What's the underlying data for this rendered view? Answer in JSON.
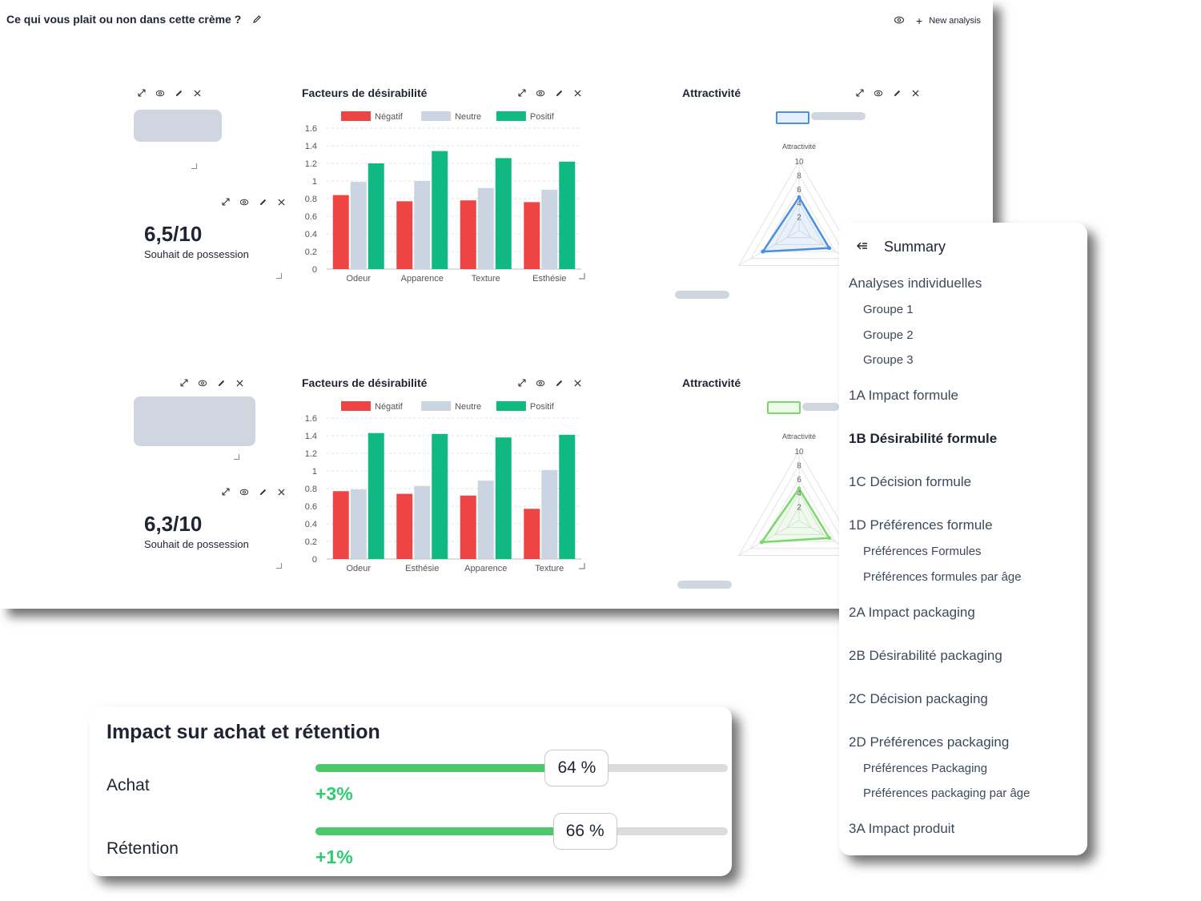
{
  "header": {
    "title": "Ce qui vous plait ou non dans cette crème ?",
    "new_analysis_label": "New analysis"
  },
  "widgets": [
    {
      "score": "6,5/10",
      "score_label": "Souhait de possession",
      "bar_chart_title": "Facteurs de désirabilité",
      "radar_title": "Attractivité",
      "radar_accent": "#4a8fe0"
    },
    {
      "score": "6,3/10",
      "score_label": "Souhait de possession",
      "bar_chart_title": "Facteurs de désirabilité",
      "radar_title": "Attractivité",
      "radar_accent": "#7bd86a"
    }
  ],
  "chart_data": [
    {
      "type": "bar",
      "title": "Facteurs de désirabilité",
      "categories": [
        "Odeur",
        "Apparence",
        "Texture",
        "Esthésie"
      ],
      "series": [
        {
          "name": "Négatif",
          "color": "#ef4444",
          "values": [
            0.84,
            0.77,
            0.78,
            0.76
          ]
        },
        {
          "name": "Neutre",
          "color": "#cbd5e1",
          "values": [
            0.99,
            1.0,
            0.92,
            0.9
          ]
        },
        {
          "name": "Positif",
          "color": "#10b981",
          "values": [
            1.2,
            1.34,
            1.26,
            1.22
          ]
        }
      ],
      "ylim": [
        0,
        1.6
      ],
      "yticks": [
        "0",
        "0.2",
        "0.4",
        "0.6",
        "0.8",
        "1",
        "1.2",
        "1.4",
        "1.6"
      ],
      "legend": "top"
    },
    {
      "type": "bar",
      "title": "Facteurs de désirabilité",
      "categories": [
        "Odeur",
        "Esthésie",
        "Apparence",
        "Texture"
      ],
      "series": [
        {
          "name": "Négatif",
          "color": "#ef4444",
          "values": [
            0.77,
            0.74,
            0.72,
            0.57
          ]
        },
        {
          "name": "Neutre",
          "color": "#cbd5e1",
          "values": [
            0.79,
            0.83,
            0.89,
            1.01
          ]
        },
        {
          "name": "Positif",
          "color": "#10b981",
          "values": [
            1.43,
            1.42,
            1.38,
            1.41
          ]
        }
      ],
      "ylim": [
        0,
        1.6
      ],
      "yticks": [
        "0",
        "0.2",
        "0.4",
        "0.6",
        "0.8",
        "1",
        "1.2",
        "1.4",
        "1.6"
      ],
      "legend": "top"
    },
    {
      "type": "radar",
      "title": "Attractivité",
      "axis_label": "Attractivité",
      "ticks": [
        "2",
        "4",
        "6",
        "8",
        "10"
      ],
      "rmax": 10,
      "values": [
        4.8,
        5.0,
        6.0
      ],
      "color": "#4a8fe0"
    },
    {
      "type": "radar",
      "title": "Attractivité",
      "axis_label": "Attractivité",
      "ticks": [
        "2",
        "4",
        "6",
        "8",
        "10"
      ],
      "rmax": 10,
      "values": [
        4.6,
        5.0,
        6.2
      ],
      "color": "#7bd86a"
    }
  ],
  "summary": {
    "title": "Summary",
    "items": [
      {
        "label": "Analyses individuelles",
        "level": 0
      },
      {
        "label": "Groupe 1",
        "level": 1
      },
      {
        "label": "Groupe 2",
        "level": 1
      },
      {
        "label": "Groupe 3",
        "level": 1
      },
      {
        "label": "1A Impact formule",
        "level": 0
      },
      {
        "label": "1B Désirabilité formule",
        "level": 0,
        "active": true
      },
      {
        "label": "1C Décision formule",
        "level": 0
      },
      {
        "label": "1D Préférences formule",
        "level": 0
      },
      {
        "label": "Préférences Formules",
        "level": 1
      },
      {
        "label": "Préférences formules par âge",
        "level": 1
      },
      {
        "label": "2A Impact packaging",
        "level": 0
      },
      {
        "label": "2B Désirabilité packaging",
        "level": 0
      },
      {
        "label": "2C Décision packaging",
        "level": 0
      },
      {
        "label": "2D Préférences packaging",
        "level": 0
      },
      {
        "label": "Préférences Packaging",
        "level": 1
      },
      {
        "label": "Préférences packaging par âge",
        "level": 1
      },
      {
        "label": "3A Impact produit",
        "level": 0
      }
    ]
  },
  "impact": {
    "title": "Impact sur achat et rétention",
    "rows": [
      {
        "label": "Achat",
        "percent_label": "64 %",
        "percent": 64,
        "delta": "+3%"
      },
      {
        "label": "Rétention",
        "percent_label": "66 %",
        "percent": 66,
        "delta": "+1%"
      }
    ]
  }
}
